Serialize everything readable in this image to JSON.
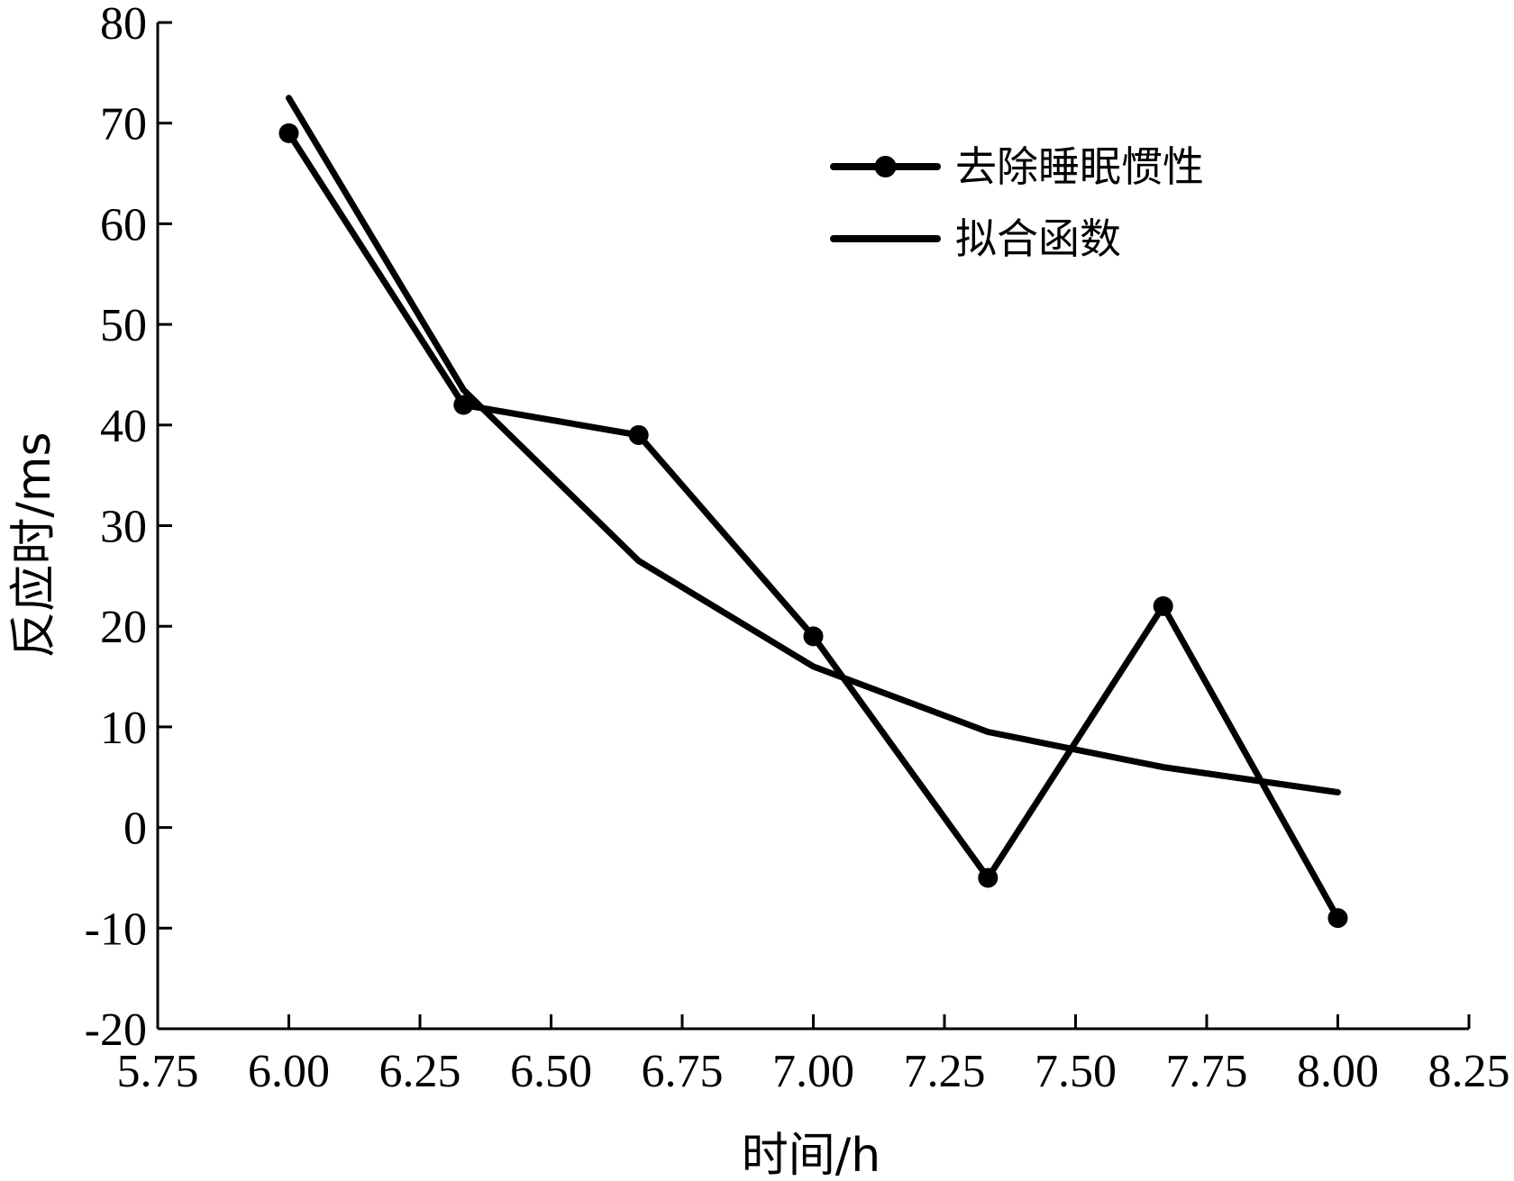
{
  "chart_data": {
    "type": "line",
    "xlabel": "时间/h",
    "ylabel": "反应时/ms",
    "xlim": [
      5.75,
      8.25
    ],
    "ylim": [
      -20,
      80
    ],
    "xticks": [
      "5.75",
      "6.00",
      "6.25",
      "6.50",
      "6.75",
      "7.00",
      "7.25",
      "7.50",
      "7.75",
      "8.00",
      "8.25"
    ],
    "yticks": [
      "80",
      "70",
      "60",
      "50",
      "40",
      "30",
      "20",
      "10",
      "0",
      "-10",
      "-20"
    ],
    "legend_position": "top-right",
    "grid": false,
    "series": [
      {
        "name": "去除睡眠惯性",
        "marker": "circle",
        "color": "#000000",
        "x": [
          6.0,
          6.333,
          6.667,
          7.0,
          7.333,
          7.667,
          8.0
        ],
        "y": [
          69,
          42,
          39,
          19,
          -5,
          22,
          -9
        ]
      },
      {
        "name": "拟合函数",
        "marker": "none",
        "color": "#000000",
        "x": [
          6.0,
          6.333,
          6.667,
          7.0,
          7.333,
          7.667,
          8.0
        ],
        "y": [
          72.5,
          43.5,
          26.5,
          16,
          9.5,
          6,
          3.5
        ]
      }
    ]
  }
}
